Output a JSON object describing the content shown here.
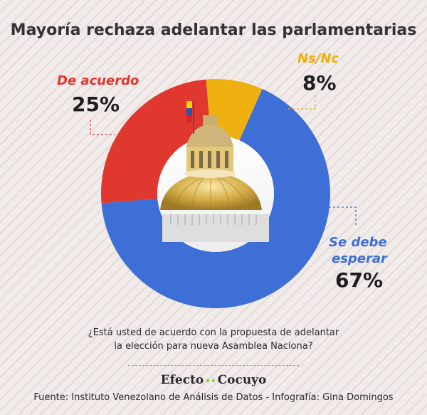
{
  "title": "Mayoría rechaza adelantar las parlamentarias",
  "chart_data": {
    "type": "pie",
    "categories": [
      "Se debe esperar",
      "De acuerdo",
      "Ns/Nc"
    ],
    "values": [
      67,
      25,
      8
    ],
    "value_labels": [
      "67%",
      "25%",
      "8%"
    ],
    "colors": [
      "#3d6fd6",
      "#e0382e",
      "#eeb00f"
    ]
  },
  "labels": {
    "acuerdo": "De acuerdo",
    "acuerdo_value": "25%",
    "nsnc": "Ns/Nc",
    "nsnc_value": "8%",
    "esperar_line1": "Se debe",
    "esperar_line2": "esperar",
    "esperar_value": "67%"
  },
  "question_line1": "¿Está usted de acuerdo con la propuesta de adelantar",
  "question_line2": "la elección para nueva Asamblea Naciona?",
  "brand": {
    "part1": "Efecto",
    "dots": "••",
    "part2": "Cocuyo"
  },
  "source": "Fuente: Instituto Venezolano de Análisis de Datos  - Infografía: Gina Domingos"
}
